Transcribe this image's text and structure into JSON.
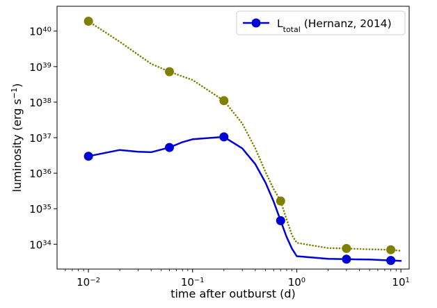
{
  "chart_data": {
    "type": "line",
    "xscale": "log",
    "yscale": "log",
    "xlim": [
      0.005,
      12
    ],
    "ylim": [
      2e+33,
      5e+40
    ],
    "xlabel": "time after outburst (d)",
    "ylabel_base": "luminosity (erg s",
    "ylabel_sup": "−1",
    "ylabel_close": ")",
    "x_ticks": [
      {
        "value": 0.01,
        "base": "10",
        "exp": "−2"
      },
      {
        "value": 0.1,
        "base": "10",
        "exp": "−1"
      },
      {
        "value": 1,
        "base": "10",
        "exp": "0"
      },
      {
        "value": 10,
        "base": "10",
        "exp": "1"
      }
    ],
    "y_ticks": [
      {
        "value": 1e+34,
        "base": "10",
        "exp": "34"
      },
      {
        "value": 1e+35,
        "base": "10",
        "exp": "35"
      },
      {
        "value": 1e+36,
        "base": "10",
        "exp": "36"
      },
      {
        "value": 1e+37,
        "base": "10",
        "exp": "37"
      },
      {
        "value": 1e+38,
        "base": "10",
        "exp": "38"
      },
      {
        "value": 1e+39,
        "base": "10",
        "exp": "39"
      },
      {
        "value": 1e+40,
        "base": "10",
        "exp": "40"
      }
    ],
    "legend": {
      "position": "top-right",
      "label_main": "L",
      "label_sub": "total",
      "label_rest": " (Hernanz, 2014)"
    },
    "series": [
      {
        "name": "L_total (Hernanz, 2014)",
        "color": "#0000d8",
        "style": "solid",
        "in_legend": true,
        "line": [
          [
            0.01,
            3e+36
          ],
          [
            0.02,
            4.5e+36
          ],
          [
            0.03,
            4e+36
          ],
          [
            0.04,
            3.9e+36
          ],
          [
            0.06,
            5.3e+36
          ],
          [
            0.08,
            7.5e+36
          ],
          [
            0.1,
            9e+36
          ],
          [
            0.2,
            1.05e+37
          ],
          [
            0.3,
            5e+36
          ],
          [
            0.4,
            1.8e+36
          ],
          [
            0.5,
            5.5e+35
          ],
          [
            0.6,
            1.6e+35
          ],
          [
            0.7,
            4.6e+34
          ],
          [
            0.8,
            1.6e+34
          ],
          [
            0.9,
            7.5e+33
          ],
          [
            1.0,
            4.6e+33
          ],
          [
            2.0,
            3.9e+33
          ],
          [
            3.0,
            3.8e+33
          ],
          [
            5.0,
            3.7e+33
          ],
          [
            8.0,
            3.5e+33
          ],
          [
            10.0,
            3.4e+33
          ]
        ],
        "markers": [
          [
            0.01,
            3e+36
          ],
          [
            0.06,
            5.3e+36
          ],
          [
            0.2,
            1.05e+37
          ],
          [
            0.7,
            4.6e+34
          ],
          [
            3.0,
            3.8e+33
          ],
          [
            8.0,
            3.5e+33
          ]
        ]
      },
      {
        "name": "dotted olive curve",
        "color": "#808000",
        "style": "dotted",
        "in_legend": false,
        "line": [
          [
            0.01,
            1.9e+40
          ],
          [
            0.02,
            5e+39
          ],
          [
            0.04,
            1.2e+39
          ],
          [
            0.06,
            7.2e+38
          ],
          [
            0.1,
            4.2e+38
          ],
          [
            0.2,
            1.1e+38
          ],
          [
            0.3,
            2.5e+37
          ],
          [
            0.4,
            5e+36
          ],
          [
            0.5,
            1.1e+36
          ],
          [
            0.6,
            3.6e+35
          ],
          [
            0.7,
            1.65e+35
          ],
          [
            0.8,
            5e+34
          ],
          [
            0.9,
            1.8e+34
          ],
          [
            1.0,
            1.1e+34
          ],
          [
            2.0,
            7.8e+33
          ],
          [
            3.0,
            7.6e+33
          ],
          [
            5.0,
            7.2e+33
          ],
          [
            8.0,
            7e+33
          ],
          [
            10.0,
            6.5e+33
          ]
        ],
        "markers": [
          [
            0.01,
            1.9e+40
          ],
          [
            0.06,
            7.2e+38
          ],
          [
            0.2,
            1.1e+38
          ],
          [
            0.7,
            1.65e+35
          ],
          [
            3.0,
            7.6e+33
          ],
          [
            8.0,
            7e+33
          ]
        ]
      }
    ]
  }
}
